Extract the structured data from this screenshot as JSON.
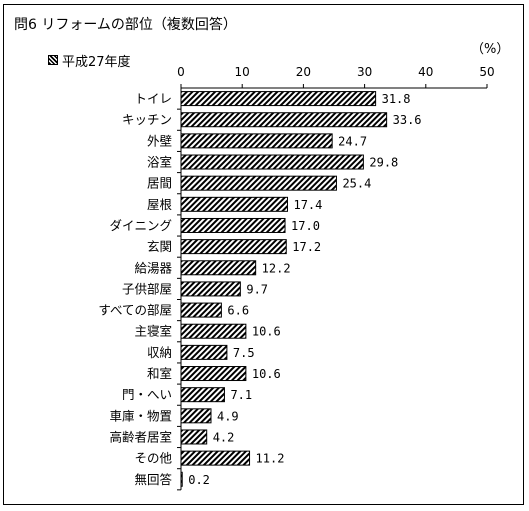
{
  "title": "問6 リフォームの部位（複数回答）",
  "unit": "（%）",
  "chart_data": {
    "type": "bar",
    "orientation": "horizontal",
    "title": "問6 リフォームの部位（複数回答）",
    "xlabel": "",
    "ylabel": "",
    "xlim": [
      0,
      50
    ],
    "x_ticks": [
      "0",
      "10",
      "20",
      "30",
      "40",
      "50"
    ],
    "grid": false,
    "legend_position": "top-left",
    "categories": [
      "トイレ",
      "キッチン",
      "外壁",
      "浴室",
      "居間",
      "屋根",
      "ダイニング",
      "玄関",
      "給湯器",
      "子供部屋",
      "すべての部屋",
      "主寝室",
      "収納",
      "和室",
      "門・へい",
      "車庫・物置",
      "高齢者居室",
      "その他",
      "無回答"
    ],
    "series": [
      {
        "name": "平成27年度",
        "values": [
          31.8,
          33.6,
          24.7,
          29.8,
          25.4,
          17.4,
          17.0,
          17.2,
          12.2,
          9.7,
          6.6,
          10.6,
          7.5,
          10.6,
          7.1,
          4.9,
          4.2,
          11.2,
          0.2
        ],
        "value_labels": [
          "31.8",
          "33.6",
          "24.7",
          "29.8",
          "25.4",
          "17.4",
          "17.0",
          "17.2",
          "12.2",
          "9.7",
          "6.6",
          "10.6",
          "7.5",
          "10.6",
          "7.1",
          "4.9",
          "4.2",
          "11.2",
          "0.2"
        ],
        "pattern": "diagonal-hatch",
        "color": "#000000"
      }
    ]
  }
}
